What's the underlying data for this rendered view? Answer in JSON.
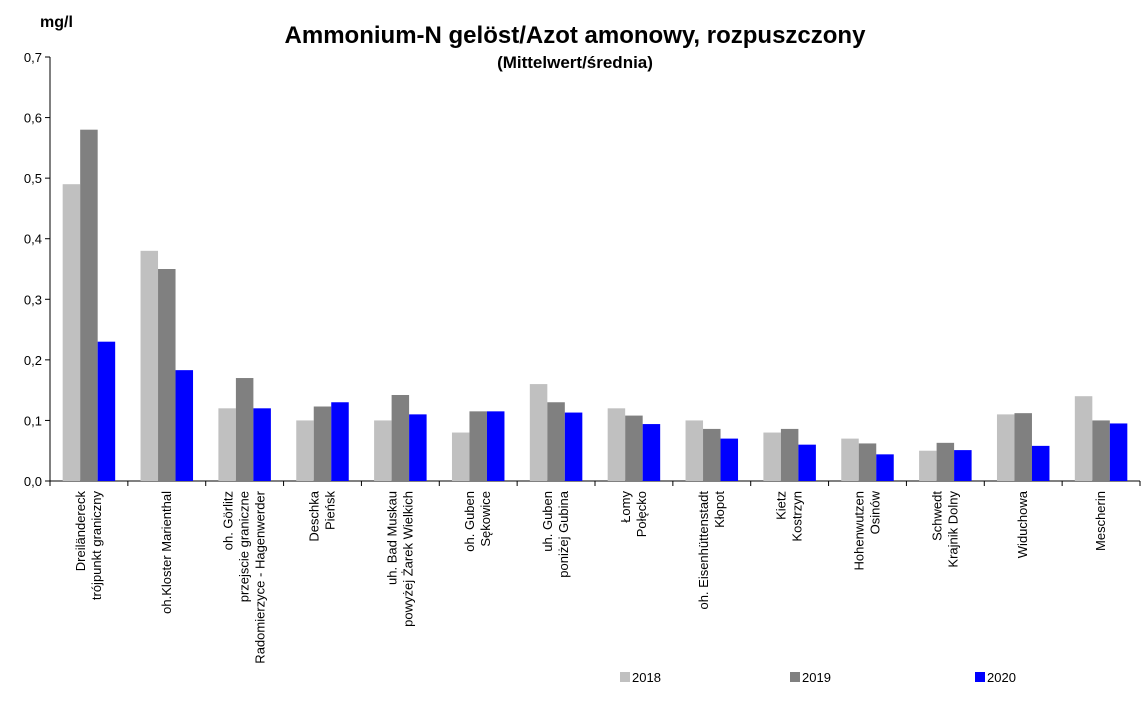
{
  "chart_data": {
    "type": "bar",
    "title": "Ammonium-N gelöst/Azot amonowy, rozpuszczony",
    "subtitle": "(Mittelwert/średnia)",
    "y_label": "mg/l",
    "categories": [
      [
        "Dreiländereck",
        "trójpunkt graniczny"
      ],
      [
        "oh.Kloster Marienthal"
      ],
      [
        "oh. Görlitz",
        "przejscie graniczne",
        "Radomierzyce - Hagenwerder"
      ],
      [
        "Deschka",
        "Pieńsk"
      ],
      [
        "uh. Bad Muskau",
        "powyżej Żarek Wielkich"
      ],
      [
        "oh. Guben",
        "Sękowice"
      ],
      [
        "uh. Guben",
        "poniżej Gubina"
      ],
      [
        "Łomy",
        "Połęcko"
      ],
      [
        "oh. Eisenhüttenstadt",
        "Kłopot"
      ],
      [
        "Kietz",
        "Kostrzyn"
      ],
      [
        "Hohenwutzen",
        "Osinów"
      ],
      [
        "Schwedt",
        "Krajnik Dolny"
      ],
      [
        "Widuchowa"
      ],
      [
        "Mescherin"
      ]
    ],
    "series": [
      {
        "name": "2018",
        "color": "#c0c0c0",
        "values": [
          0.49,
          0.38,
          0.12,
          0.1,
          0.1,
          0.08,
          0.16,
          0.12,
          0.1,
          0.08,
          0.07,
          0.05,
          0.11,
          0.14
        ]
      },
      {
        "name": "2019",
        "color": "#808080",
        "values": [
          0.58,
          0.35,
          0.17,
          0.123,
          0.142,
          0.115,
          0.13,
          0.108,
          0.086,
          0.086,
          0.062,
          0.063,
          0.112,
          0.1
        ]
      },
      {
        "name": "2020",
        "color": "#0000ff",
        "values": [
          0.23,
          0.183,
          0.12,
          0.13,
          0.11,
          0.115,
          0.113,
          0.094,
          0.07,
          0.06,
          0.044,
          0.051,
          0.058,
          0.095
        ]
      }
    ],
    "ylim": [
      0,
      0.7
    ],
    "yticks": [
      {
        "value": 0,
        "label": "0,0"
      },
      {
        "value": 0.1,
        "label": "0,1"
      },
      {
        "value": 0.2,
        "label": "0,2"
      },
      {
        "value": 0.3,
        "label": "0,3"
      },
      {
        "value": 0.4,
        "label": "0,4"
      },
      {
        "value": 0.5,
        "label": "0,5"
      },
      {
        "value": 0.6,
        "label": "0,6"
      },
      {
        "value": 0.7,
        "label": "0,7"
      }
    ],
    "legend": "bottom-right"
  }
}
